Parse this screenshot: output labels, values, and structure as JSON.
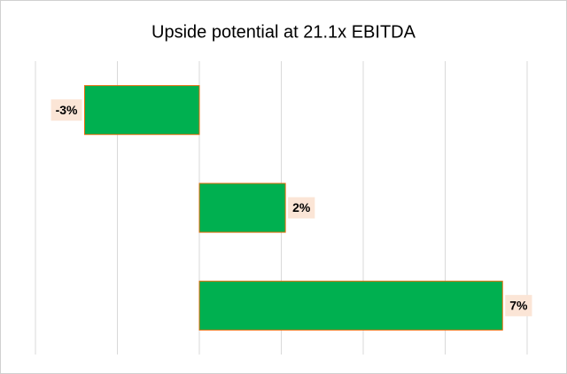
{
  "chart_data": {
    "type": "hbar",
    "title": "Upside potential  at 21.1x EBITDA",
    "categories": [
      null,
      null,
      null
    ],
    "values": [
      -2.8,
      2.1,
      7.4
    ],
    "value_labels": [
      "-3%",
      "2%",
      "7%"
    ],
    "color": "#00b050",
    "edge_color": "#e46c0a",
    "xlim": [
      -4,
      8
    ],
    "xticks": [
      -4,
      -2,
      0,
      2,
      4,
      6,
      8
    ],
    "grid": true
  }
}
